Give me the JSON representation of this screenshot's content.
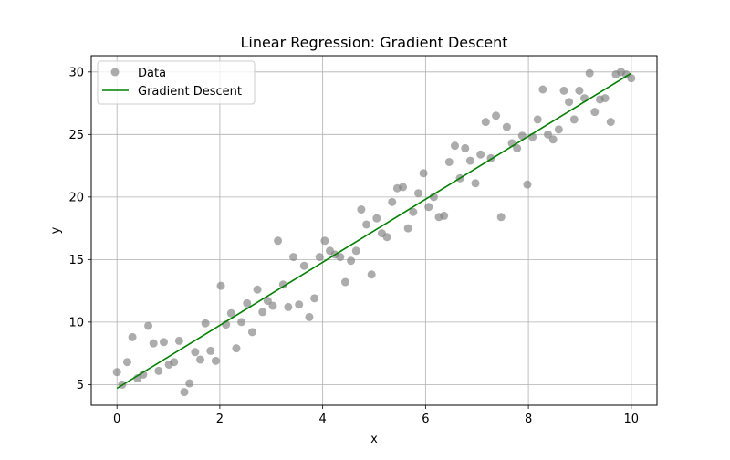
{
  "chart_data": {
    "type": "scatter",
    "title": "Linear Regression: Gradient Descent",
    "xlabel": "x",
    "ylabel": "y",
    "xlim": [
      -0.5,
      10.5
    ],
    "ylim": [
      3.35,
      31.3
    ],
    "xticks": [
      0,
      2,
      4,
      6,
      8,
      10
    ],
    "yticks": [
      5,
      10,
      15,
      20,
      25,
      30
    ],
    "grid": true,
    "legend_position": "top-left",
    "colors": {
      "data": "#808080",
      "fit": "#008000",
      "grid": "#b0b0b0"
    },
    "series": [
      {
        "name": "Data",
        "kind": "scatter",
        "x": [
          0,
          0.1,
          0.2,
          0.3,
          0.4,
          0.51,
          0.61,
          0.71,
          0.81,
          0.91,
          1.01,
          1.11,
          1.21,
          1.31,
          1.41,
          1.52,
          1.62,
          1.72,
          1.82,
          1.92,
          2.02,
          2.12,
          2.22,
          2.32,
          2.42,
          2.53,
          2.63,
          2.73,
          2.83,
          2.93,
          3.03,
          3.13,
          3.23,
          3.33,
          3.43,
          3.54,
          3.64,
          3.74,
          3.84,
          3.94,
          4.04,
          4.14,
          4.24,
          4.34,
          4.44,
          4.55,
          4.65,
          4.75,
          4.85,
          4.95,
          5.05,
          5.15,
          5.25,
          5.35,
          5.45,
          5.56,
          5.66,
          5.76,
          5.86,
          5.96,
          6.06,
          6.16,
          6.26,
          6.36,
          6.46,
          6.57,
          6.67,
          6.77,
          6.87,
          6.97,
          7.07,
          7.17,
          7.27,
          7.37,
          7.47,
          7.58,
          7.68,
          7.78,
          7.88,
          7.98,
          8.08,
          8.18,
          8.28,
          8.38,
          8.48,
          8.59,
          8.69,
          8.79,
          8.89,
          8.99,
          9.09,
          9.19,
          9.29,
          9.39,
          9.49,
          9.6,
          9.7,
          9.8,
          9.9,
          10
        ],
        "y": [
          6.0,
          5.0,
          6.8,
          8.8,
          5.5,
          5.8,
          9.7,
          8.3,
          6.1,
          8.4,
          6.6,
          6.8,
          8.5,
          4.4,
          5.1,
          7.6,
          7.0,
          9.9,
          7.7,
          6.9,
          12.9,
          9.8,
          10.7,
          7.9,
          10.0,
          11.5,
          9.2,
          12.6,
          10.8,
          11.7,
          11.3,
          16.5,
          13.0,
          11.2,
          15.2,
          11.4,
          14.5,
          10.4,
          11.9,
          15.2,
          16.5,
          15.7,
          15.4,
          15.2,
          13.2,
          14.9,
          15.7,
          19.0,
          17.8,
          13.8,
          18.3,
          17.1,
          16.8,
          19.6,
          20.7,
          20.8,
          17.5,
          18.8,
          20.3,
          21.9,
          19.2,
          20.0,
          18.4,
          18.5,
          22.8,
          24.1,
          21.5,
          23.9,
          22.9,
          21.1,
          23.4,
          26.0,
          23.1,
          26.5,
          18.4,
          25.6,
          24.3,
          23.9,
          24.9,
          21.0,
          24.8,
          26.2,
          28.6,
          25.0,
          24.6,
          25.4,
          28.5,
          27.6,
          26.2,
          28.5,
          27.9,
          29.9,
          26.8,
          27.8,
          27.9,
          26.0,
          29.8,
          30.0,
          29.8,
          29.5
        ]
      },
      {
        "name": "Gradient Descent",
        "kind": "line",
        "x": [
          0,
          10
        ],
        "y": [
          4.7,
          29.9
        ]
      }
    ]
  }
}
